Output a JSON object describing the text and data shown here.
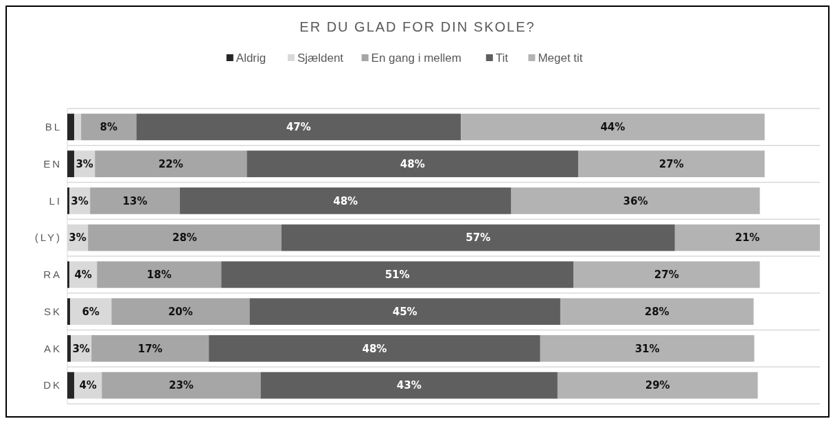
{
  "chart_data": {
    "type": "bar",
    "orientation": "horizontal",
    "stacked": true,
    "title": "ER DU GLAD FOR DIN SKOLE?",
    "categories": [
      "BL",
      "EN",
      "LI",
      "(LY)",
      "RA",
      "SK",
      "AK",
      "DK"
    ],
    "legend": "top",
    "grid": "y",
    "tick_labels": "y",
    "series": [
      {
        "name": "Aldrig",
        "color": "#262626",
        "values": [
          1,
          1,
          0.3,
          null,
          0.3,
          0.4,
          0.5,
          1
        ]
      },
      {
        "name": "Sjældent",
        "color": "#d9d9d9",
        "values": [
          1,
          3,
          3,
          3,
          4,
          6,
          3,
          4
        ],
        "value_labels": [
          null,
          "3%",
          "3%",
          "3%",
          "4%",
          "6%",
          "3%",
          "4%"
        ]
      },
      {
        "name": "En gang i mellem",
        "color": "#a6a6a6",
        "values": [
          8,
          22,
          13,
          28,
          18,
          20,
          17,
          23
        ],
        "value_labels": [
          "8%",
          "22%",
          "13%",
          "28%",
          "18%",
          "20%",
          "17%",
          "23%"
        ]
      },
      {
        "name": "Tit",
        "color": "#5f5f5f",
        "values": [
          47,
          48,
          48,
          57,
          51,
          45,
          48,
          43
        ],
        "value_labels": [
          "47%",
          "48%",
          "48%",
          "57%",
          "51%",
          "45%",
          "48%",
          "43%"
        ]
      },
      {
        "name": "Meget tit",
        "color": "#b3b3b3",
        "values": [
          44,
          27,
          36,
          21,
          27,
          28,
          31,
          29
        ],
        "value_labels": [
          "44%",
          "27%",
          "36%",
          "21%",
          "27%",
          "28%",
          "31%",
          "29%"
        ]
      }
    ]
  }
}
